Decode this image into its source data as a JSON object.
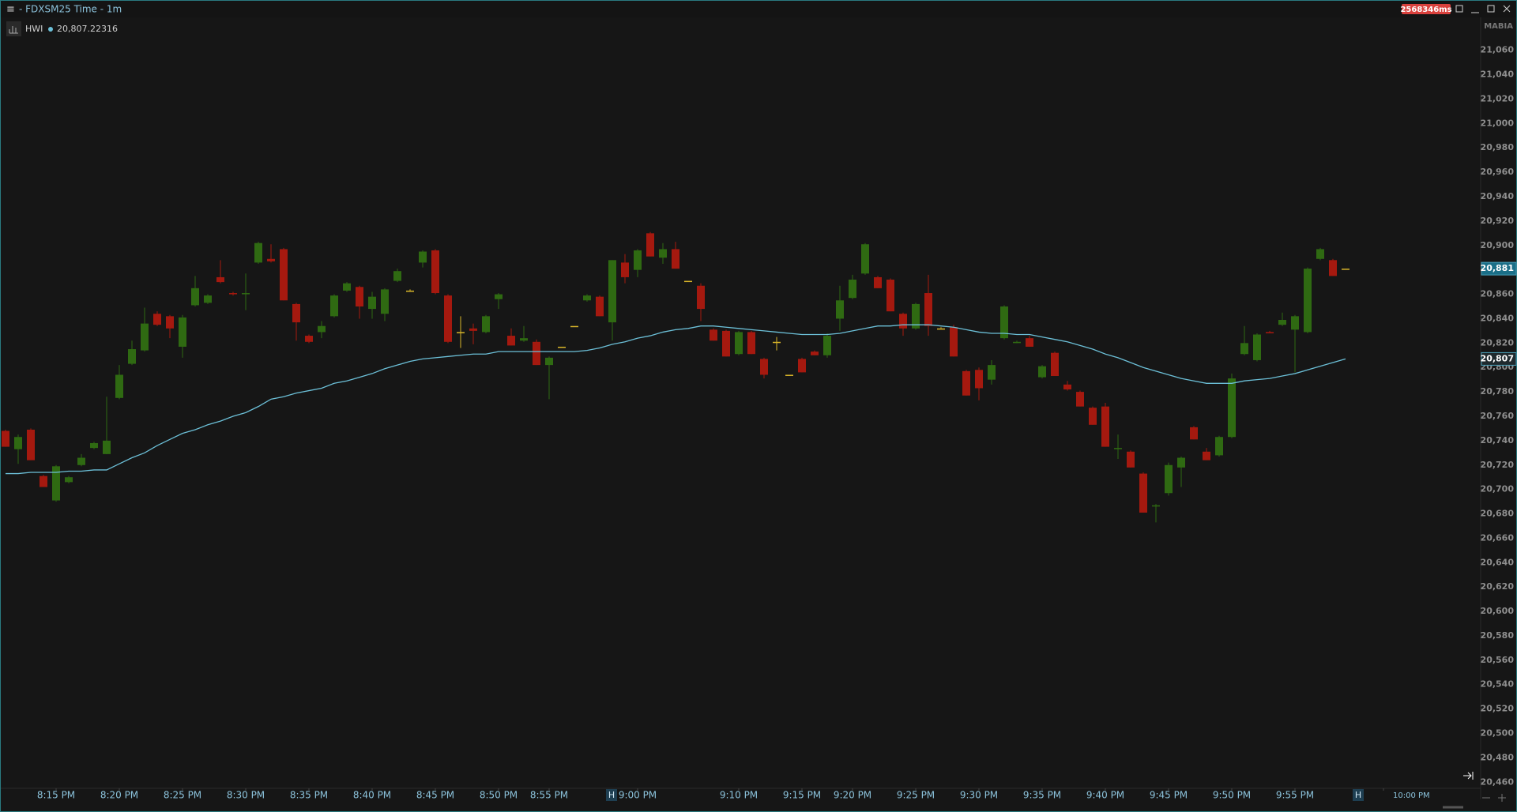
{
  "window": {
    "menu_icon": "≡",
    "title": "- FDXSM25 Time - 1m",
    "latency": "2568346ms",
    "corner_label": "MABIA"
  },
  "chart_data": {
    "type": "candlestick",
    "legend": {
      "name": "HWI",
      "value": "20,807.22316"
    },
    "hour_marker": "H",
    "colors": {
      "up": "#2f6a12",
      "down": "#a5190f",
      "neutral": "#d8b52a",
      "moving_average": "#6cc0d8"
    },
    "categories": [
      null,
      null,
      null,
      null,
      "8:15 PM",
      null,
      null,
      null,
      null,
      "8:20 PM",
      null,
      null,
      null,
      null,
      "8:25 PM",
      null,
      null,
      null,
      null,
      "8:30 PM",
      null,
      null,
      null,
      null,
      "8:35 PM",
      null,
      null,
      null,
      null,
      "8:40 PM",
      null,
      null,
      null,
      null,
      "8:45 PM",
      null,
      null,
      null,
      null,
      "8:50 PM",
      null,
      null,
      null,
      "8:55 PM",
      null,
      null,
      null,
      null,
      null,
      null,
      "9:00 PM",
      null,
      null,
      null,
      null,
      null,
      null,
      null,
      "9:10 PM",
      null,
      null,
      null,
      null,
      "9:15 PM",
      null,
      null,
      null,
      "9:20 PM",
      null,
      null,
      null,
      null,
      "9:25 PM",
      null,
      null,
      null,
      null,
      "9:30 PM",
      null,
      null,
      null,
      null,
      "9:35 PM",
      null,
      null,
      null,
      null,
      "9:40 PM",
      null,
      null,
      null,
      null,
      "9:45 PM",
      null,
      null,
      null,
      null,
      "9:50 PM",
      null,
      null,
      null,
      null,
      "9:55 PM",
      null,
      null,
      null,
      null,
      null,
      null,
      "10:00 PM",
      null
    ],
    "open": [
      20748,
      20733,
      20749,
      20711,
      20691,
      20706,
      20720,
      20734,
      20729,
      20775,
      20803,
      20814,
      20844,
      20842,
      20817,
      20851,
      20853,
      20874,
      20861,
      20860,
      20886,
      20889,
      20897,
      20852,
      20826,
      20829,
      20842,
      20863,
      20866,
      20848,
      20844,
      20871,
      20863,
      20886,
      20896,
      20859,
      20829,
      20832,
      20829,
      20856,
      20826,
      20822,
      20821,
      20802,
      20817,
      20834,
      20855,
      20858,
      20837,
      20886,
      20880,
      20910,
      20890,
      20897,
      20871,
      20867,
      20831,
      20830,
      20811,
      20829,
      20807,
      20821,
      20794,
      20807,
      20813,
      20810,
      20840,
      20857,
      20877,
      20874,
      20872,
      20844,
      20832,
      20861,
      20832,
      20833,
      20797,
      20798,
      20790,
      20824,
      20820,
      20824,
      20792,
      20812,
      20786,
      20780,
      20767,
      20768,
      20733,
      20731,
      20713,
      20686,
      20697,
      20718,
      20751,
      20731,
      20728,
      20743,
      20811,
      20806,
      20829,
      20835,
      20831,
      20829,
      20889,
      20888,
      20881,
      null,
      null,
      null,
      null
    ],
    "high": [
      20749,
      20745,
      20750,
      20712,
      20720,
      20711,
      20729,
      20739,
      20776,
      20802,
      20822,
      20849,
      20846,
      20843,
      20843,
      20875,
      20860,
      20888,
      20862,
      20877,
      20903,
      20901,
      20898,
      20853,
      20827,
      20838,
      20860,
      20870,
      20867,
      20862,
      20865,
      20881,
      20864,
      20896,
      20897,
      20860,
      20842,
      20836,
      20843,
      20861,
      20832,
      20834,
      20823,
      20809,
      20817,
      20834,
      20860,
      20859,
      20888,
      20893,
      20897,
      20911,
      20902,
      20903,
      20871,
      20869,
      20832,
      20831,
      20830,
      20830,
      20808,
      20825,
      20794,
      20808,
      20814,
      20828,
      20867,
      20876,
      20902,
      20875,
      20873,
      20845,
      20853,
      20876,
      20833,
      20835,
      20798,
      20800,
      20806,
      20851,
      20822,
      20826,
      20802,
      20813,
      20789,
      20781,
      20768,
      20771,
      20745,
      20732,
      20714,
      20688,
      20722,
      20727,
      20752,
      20734,
      20744,
      20795,
      20834,
      20828,
      20830,
      20845,
      20843,
      20882,
      20898,
      20889,
      20881,
      null,
      null,
      null,
      null
    ],
    "low": [
      20735,
      20721,
      20724,
      20702,
      20690,
      20705,
      20719,
      20733,
      20729,
      20774,
      20802,
      20813,
      20834,
      20824,
      20808,
      20850,
      20852,
      20869,
      20859,
      20847,
      20885,
      20886,
      20855,
      20822,
      20820,
      20824,
      20841,
      20862,
      20840,
      20840,
      20838,
      20870,
      20862,
      20882,
      20860,
      20820,
      20816,
      20819,
      20828,
      20848,
      20818,
      20821,
      20802,
      20774,
      20817,
      20834,
      20854,
      20842,
      20822,
      20869,
      20874,
      20891,
      20885,
      20881,
      20871,
      20838,
      20822,
      20809,
      20810,
      20811,
      20791,
      20814,
      20794,
      20796,
      20810,
      20808,
      20830,
      20856,
      20876,
      20865,
      20846,
      20826,
      20831,
      20826,
      20832,
      20809,
      20777,
      20773,
      20786,
      20823,
      20820,
      20817,
      20791,
      20793,
      20781,
      20768,
      20753,
      20735,
      20725,
      20718,
      20681,
      20673,
      20695,
      20702,
      20741,
      20724,
      20727,
      20742,
      20810,
      20805,
      20828,
      20834,
      20796,
      20828,
      20888,
      20875,
      20881,
      null,
      null,
      null,
      null
    ],
    "close": [
      20735,
      20743,
      20724,
      20702,
      20719,
      20710,
      20726,
      20738,
      20740,
      20794,
      20815,
      20836,
      20835,
      20832,
      20841,
      20865,
      20859,
      20870,
      20860,
      20861,
      20902,
      20887,
      20855,
      20837,
      20821,
      20834,
      20859,
      20869,
      20850,
      20858,
      20864,
      20879,
      20863,
      20895,
      20861,
      20821,
      20829,
      20830,
      20842,
      20860,
      20818,
      20824,
      20802,
      20808,
      20817,
      20834,
      20859,
      20842,
      20888,
      20874,
      20896,
      20891,
      20897,
      20881,
      20871,
      20848,
      20822,
      20809,
      20829,
      20811,
      20794,
      20821,
      20794,
      20796,
      20810,
      20826,
      20855,
      20872,
      20901,
      20865,
      20846,
      20832,
      20852,
      20834,
      20832,
      20809,
      20777,
      20783,
      20802,
      20850,
      20821,
      20817,
      20801,
      20793,
      20782,
      20768,
      20753,
      20735,
      20734,
      20718,
      20681,
      20687,
      20720,
      20726,
      20741,
      20724,
      20743,
      20791,
      20820,
      20827,
      20828,
      20839,
      20842,
      20881,
      20897,
      20875,
      20881,
      null,
      null,
      null,
      null
    ],
    "moving_average": [
      20713,
      20713,
      20714,
      20714,
      20714,
      20715,
      20715,
      20716,
      20716,
      20721,
      20726,
      20730,
      20736,
      20741,
      20746,
      20749,
      20753,
      20756,
      20760,
      20763,
      20768,
      20774,
      20776,
      20779,
      20781,
      20783,
      20787,
      20789,
      20792,
      20795,
      20799,
      20802,
      20805,
      20807,
      20808,
      20809,
      20810,
      20811,
      20811,
      20813,
      20813,
      20813,
      20813,
      20813,
      20813,
      20813,
      20814,
      20816,
      20819,
      20821,
      20824,
      20826,
      20829,
      20831,
      20832,
      20834,
      20834,
      20833,
      20832,
      20831,
      20830,
      20829,
      20828,
      20827,
      20827,
      20827,
      20828,
      20830,
      20832,
      20834,
      20834,
      20835,
      20835,
      20835,
      20834,
      20833,
      20831,
      20829,
      20828,
      20828,
      20827,
      20827,
      20825,
      20823,
      20821,
      20818,
      20815,
      20811,
      20808,
      20804,
      20800,
      20797,
      20794,
      20791,
      20789,
      20787,
      20787,
      20787,
      20789,
      20790,
      20791,
      20793,
      20795,
      20798,
      20801,
      20804,
      20807,
      null,
      null,
      null,
      null
    ],
    "price_tags": [
      {
        "value": 20881,
        "label": "20,881",
        "color": "#1b6f88"
      },
      {
        "value": 20807,
        "label": "20,807",
        "color": "#1f2a2e"
      }
    ],
    "ylim": [
      20455,
      21087
    ],
    "yticks": [
      {
        "value": 20460,
        "label": "20,460"
      },
      {
        "value": 20480,
        "label": "20,480"
      },
      {
        "value": 20500,
        "label": "20,500"
      },
      {
        "value": 20520,
        "label": "20,520"
      },
      {
        "value": 20540,
        "label": "20,540"
      },
      {
        "value": 20560,
        "label": "20,560"
      },
      {
        "value": 20580,
        "label": "20,580"
      },
      {
        "value": 20600,
        "label": "20,600"
      },
      {
        "value": 20620,
        "label": "20,620"
      },
      {
        "value": 20640,
        "label": "20,640"
      },
      {
        "value": 20660,
        "label": "20,660"
      },
      {
        "value": 20680,
        "label": "20,680"
      },
      {
        "value": 20700,
        "label": "20,700"
      },
      {
        "value": 20720,
        "label": "20,720"
      },
      {
        "value": 20740,
        "label": "20,740"
      },
      {
        "value": 20760,
        "label": "20,760"
      },
      {
        "value": 20780,
        "label": "20,780"
      },
      {
        "value": 20800,
        "label": "20,800"
      },
      {
        "value": 20820,
        "label": "20,820"
      },
      {
        "value": 20840,
        "label": "20,840"
      },
      {
        "value": 20860,
        "label": "20,860"
      },
      {
        "value": 20880,
        "label": "20,880"
      },
      {
        "value": 20900,
        "label": "20,900"
      },
      {
        "value": 20920,
        "label": "20,920"
      },
      {
        "value": 20940,
        "label": "20,940"
      },
      {
        "value": 20960,
        "label": "20,960"
      },
      {
        "value": 20980,
        "label": "20,980"
      },
      {
        "value": 21000,
        "label": "21,000"
      },
      {
        "value": 21020,
        "label": "21,020"
      },
      {
        "value": 21040,
        "label": "21,040"
      },
      {
        "value": 21060,
        "label": "21,060"
      }
    ]
  }
}
